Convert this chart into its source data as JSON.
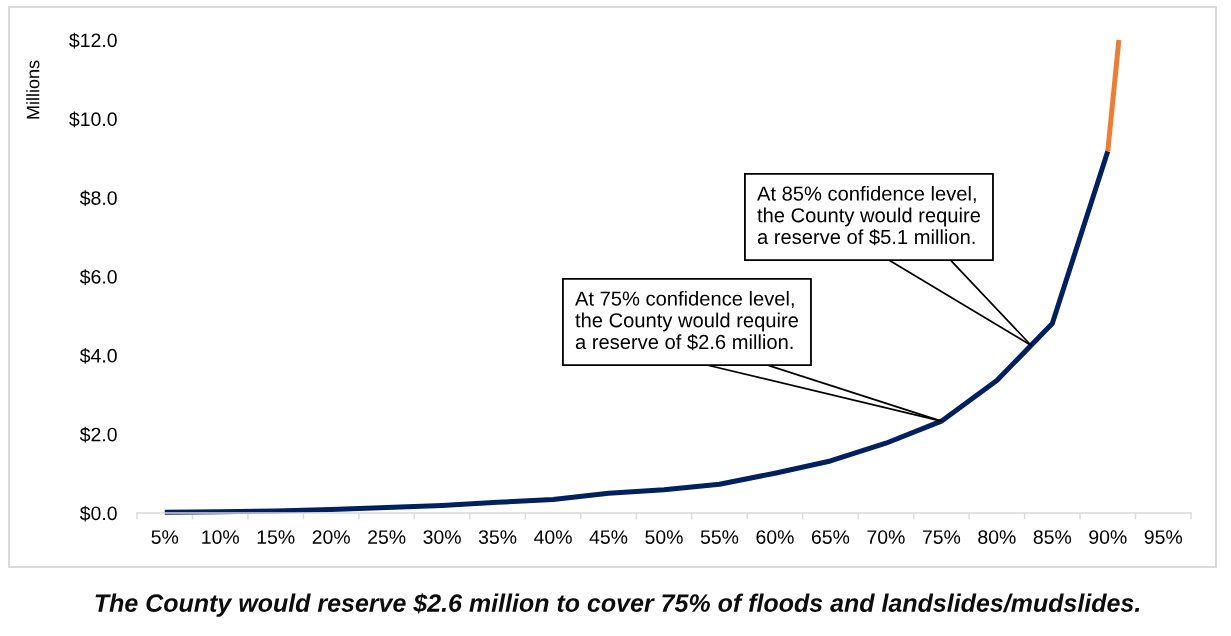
{
  "chart_data": {
    "type": "line",
    "ylabel": "Millions",
    "annotations": [
      {
        "text": "At 75% confidence level,\nthe County would require\na reserve of $2.6 million.",
        "x": 75,
        "y": 2.33
      },
      {
        "text": "At 85% confidence level,\nthe County would require\na reserve of $5.1 million.",
        "x": 83.1,
        "y": 4.25
      },
      "The County would reserve $2.6 million to cover 75% of floods and landslides/mudslides."
    ],
    "x": [
      5,
      10,
      15,
      20,
      25,
      30,
      35,
      40,
      45,
      50,
      55,
      60,
      65,
      70,
      75,
      80,
      85,
      90
    ],
    "series": [
      {
        "color": "#002060",
        "values": [
          0.02,
          0.03,
          0.05,
          0.09,
          0.14,
          0.19,
          0.27,
          0.34,
          0.5,
          0.59,
          0.73,
          1.01,
          1.32,
          1.77,
          2.33,
          3.36,
          4.81,
          9.18
        ]
      },
      {
        "color": "#ed7d31",
        "x": [
          90,
          91
        ],
        "values": [
          9.18,
          12.0
        ]
      }
    ],
    "xlim": [
      2.5,
      97.5
    ],
    "xticks": [
      {
        "value": 2.5,
        "label": null
      },
      {
        "value": 5,
        "label": "5%"
      },
      {
        "value": 7.5,
        "label": null
      },
      {
        "value": 10,
        "label": "10%"
      },
      {
        "value": 12.5,
        "label": null
      },
      {
        "value": 15,
        "label": "15%"
      },
      {
        "value": 17.5,
        "label": null
      },
      {
        "value": 20,
        "label": "20%"
      },
      {
        "value": 22.5,
        "label": null
      },
      {
        "value": 25,
        "label": "25%"
      },
      {
        "value": 27.5,
        "label": null
      },
      {
        "value": 30,
        "label": "30%"
      },
      {
        "value": 32.5,
        "label": null
      },
      {
        "value": 35,
        "label": "35%"
      },
      {
        "value": 37.5,
        "label": null
      },
      {
        "value": 40,
        "label": "40%"
      },
      {
        "value": 42.5,
        "label": null
      },
      {
        "value": 45,
        "label": "45%"
      },
      {
        "value": 47.5,
        "label": null
      },
      {
        "value": 50,
        "label": "50%"
      },
      {
        "value": 52.5,
        "label": null
      },
      {
        "value": 55,
        "label": "55%"
      },
      {
        "value": 57.5,
        "label": null
      },
      {
        "value": 60,
        "label": "60%"
      },
      {
        "value": 62.5,
        "label": null
      },
      {
        "value": 65,
        "label": "65%"
      },
      {
        "value": 67.5,
        "label": null
      },
      {
        "value": 70,
        "label": "70%"
      },
      {
        "value": 72.5,
        "label": null
      },
      {
        "value": 75,
        "label": "75%"
      },
      {
        "value": 77.5,
        "label": null
      },
      {
        "value": 80,
        "label": "80%"
      },
      {
        "value": 82.5,
        "label": null
      },
      {
        "value": 85,
        "label": "85%"
      },
      {
        "value": 87.5,
        "label": null
      },
      {
        "value": 90,
        "label": "90%"
      },
      {
        "value": 92.5,
        "label": null
      },
      {
        "value": 95,
        "label": "95%"
      },
      {
        "value": 97.5,
        "label": null
      }
    ],
    "ylim": [
      0,
      12
    ],
    "yticks": [
      {
        "value": 0,
        "label": "$0.0"
      },
      {
        "value": 2,
        "label": "$2.0"
      },
      {
        "value": 4,
        "label": "$4.0"
      },
      {
        "value": 6,
        "label": "$6.0"
      },
      {
        "value": 8,
        "label": "$8.0"
      },
      {
        "value": 10,
        "label": "$10.0"
      },
      {
        "value": 12,
        "label": "$12.0"
      }
    ]
  }
}
